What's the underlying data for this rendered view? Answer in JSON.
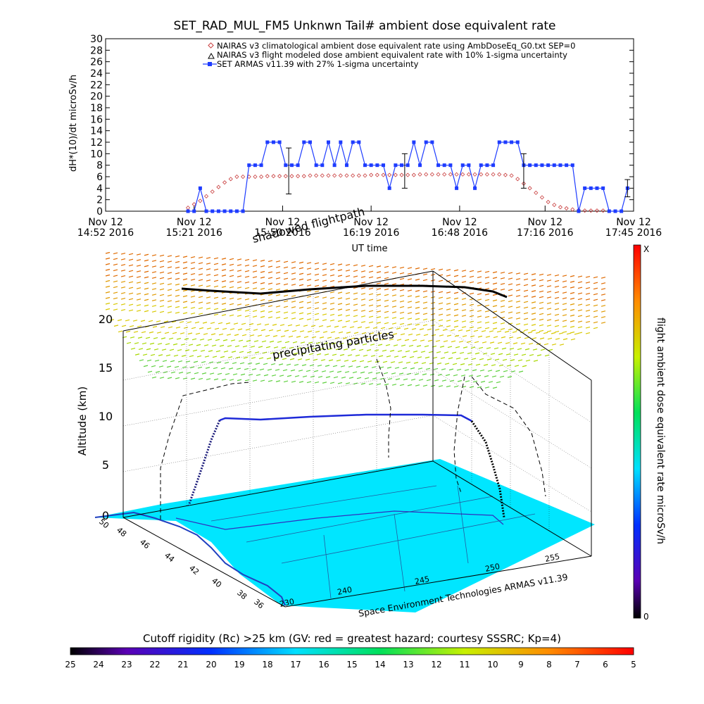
{
  "chart_data": [
    {
      "type": "scatter",
      "title": "SET_RAD_MUL_FM5 Unknwn Tail#  ambient dose equivalent rate",
      "ylabel": "dH*(10)/dt microSv/h",
      "xlabel": "UT time",
      "ylim": [
        0,
        30
      ],
      "yticks": [
        "0",
        "2",
        "4",
        "6",
        "8",
        "10",
        "12",
        "14",
        "16",
        "18",
        "20",
        "22",
        "24",
        "26",
        "28",
        "30"
      ],
      "xlim": [
        0,
        173
      ],
      "xticks": [
        {
          "t": 0,
          "line1": "Nov 12",
          "line2": "14:52 2016"
        },
        {
          "t": 29,
          "line1": "Nov 12",
          "line2": "15:21 2016"
        },
        {
          "t": 58,
          "line1": "Nov 12",
          "line2": "15:50 2016"
        },
        {
          "t": 87,
          "line1": "Nov 12",
          "line2": "16:19 2016"
        },
        {
          "t": 116,
          "line1": "Nov 12",
          "line2": "16:48 2016"
        },
        {
          "t": 144,
          "line1": "Nov 12",
          "line2": "17:16 2016"
        },
        {
          "t": 173,
          "line1": "Nov 12",
          "line2": "17:45 2016"
        }
      ],
      "legend_position": "top-right",
      "series": [
        {
          "name": "NAIRAS v3 climatological ambient dose equivalent rate using AmbDoseEq_G0.txt SEP=0",
          "color": "#c83c3c",
          "marker": "diamond",
          "x": [
            27,
            29,
            31,
            33,
            35,
            37,
            39,
            41,
            43,
            45,
            47,
            49,
            51,
            53,
            55,
            57,
            59,
            61,
            63,
            65,
            67,
            69,
            71,
            73,
            75,
            77,
            79,
            81,
            83,
            85,
            87,
            89,
            91,
            93,
            95,
            97,
            99,
            101,
            103,
            105,
            107,
            109,
            111,
            113,
            115,
            117,
            119,
            121,
            123,
            125,
            127,
            129,
            131,
            133,
            135,
            137,
            139,
            141,
            143,
            145,
            147,
            149,
            151,
            153,
            155,
            157,
            159,
            161,
            163
          ],
          "y": [
            0.6,
            1.2,
            1.8,
            2.6,
            3.4,
            4.2,
            5.0,
            5.6,
            6.0,
            6.0,
            6.0,
            6.0,
            6.0,
            6.1,
            6.1,
            6.1,
            6.1,
            6.1,
            6.1,
            6.1,
            6.2,
            6.2,
            6.2,
            6.2,
            6.2,
            6.2,
            6.2,
            6.2,
            6.2,
            6.2,
            6.3,
            6.3,
            6.3,
            6.3,
            6.3,
            6.3,
            6.3,
            6.3,
            6.4,
            6.4,
            6.4,
            6.4,
            6.4,
            6.4,
            6.4,
            6.4,
            6.4,
            6.4,
            6.4,
            6.4,
            6.4,
            6.4,
            6.3,
            6.2,
            5.6,
            4.8,
            4.0,
            3.2,
            2.4,
            1.6,
            1.1,
            0.7,
            0.5,
            0.3,
            0.2,
            0.1,
            0.1,
            0.1,
            0.1
          ]
        },
        {
          "name": "NAIRAS v3 flight modeled dose ambient equivalent rate with 10% 1-sigma uncertainty",
          "color": "#000000",
          "marker": "triangle",
          "x": [],
          "y": []
        },
        {
          "name": "SET ARMAS v11.39 with 27% 1-sigma uncertainty",
          "color": "#1e3cff",
          "marker": "square",
          "x": [
            27,
            29,
            31,
            33,
            35,
            37,
            39,
            41,
            43,
            45,
            47,
            49,
            51,
            53,
            55,
            57,
            59,
            61,
            63,
            65,
            67,
            69,
            71,
            73,
            75,
            77,
            79,
            81,
            83,
            85,
            87,
            89,
            91,
            93,
            95,
            97,
            99,
            101,
            103,
            105,
            107,
            109,
            111,
            113,
            115,
            117,
            119,
            121,
            123,
            125,
            127,
            129,
            131,
            133,
            135,
            137,
            139,
            141,
            143,
            145,
            147,
            149,
            151,
            153,
            155,
            157,
            159,
            161,
            163,
            165,
            167,
            169,
            171
          ],
          "y": [
            0,
            0,
            4,
            0,
            0,
            0,
            0,
            0,
            0,
            0,
            8,
            8,
            8,
            12,
            12,
            12,
            8,
            8,
            8,
            12,
            12,
            8,
            8,
            12,
            8,
            12,
            8,
            12,
            12,
            8,
            8,
            8,
            8,
            4,
            8,
            8,
            8,
            12,
            8,
            12,
            12,
            8,
            8,
            8,
            4,
            8,
            8,
            4,
            8,
            8,
            8,
            12,
            12,
            12,
            12,
            8,
            8,
            8,
            8,
            8,
            8,
            8,
            8,
            8,
            0,
            4,
            4,
            4,
            4,
            0,
            0,
            0,
            4
          ]
        }
      ],
      "error_bars": [
        {
          "t": 60,
          "y": 7,
          "err": 4
        },
        {
          "t": 98,
          "y": 7,
          "err": 3
        },
        {
          "t": 137,
          "y": 7,
          "err": 3
        },
        {
          "t": 171,
          "y": 4,
          "err": 1.5
        }
      ]
    },
    {
      "type": "3d-scatter",
      "zlabel": "Altitude (km)",
      "zlim": [
        0,
        20
      ],
      "zticks": [
        "0",
        "5",
        "10",
        "15",
        "20"
      ],
      "lat_ticks": [
        "50",
        "48",
        "46",
        "44",
        "42",
        "40",
        "38",
        "36"
      ],
      "lon_ticks": [
        "230",
        "240",
        "245",
        "250",
        "255"
      ],
      "annotations": [
        "shadowed flightpath",
        "precipitating particles"
      ],
      "credit": "Space Environment Technologies ARMAS v11.39",
      "colorbar_label": "flight ambient dose equivalent rate microSv/h",
      "colorbar_min": "0",
      "colorbar_max": "X"
    },
    {
      "type": "colorbar",
      "title": "Cutoff rigidity (Rc) >25 km (GV: red = greatest hazard; courtesy SSSRC; Kp=4)",
      "ticks": [
        "25",
        "24",
        "23",
        "22",
        "21",
        "20",
        "19",
        "18",
        "17",
        "16",
        "15",
        "14",
        "13",
        "12",
        "11",
        "10",
        "9",
        "8",
        "7",
        "6",
        "5"
      ]
    }
  ]
}
